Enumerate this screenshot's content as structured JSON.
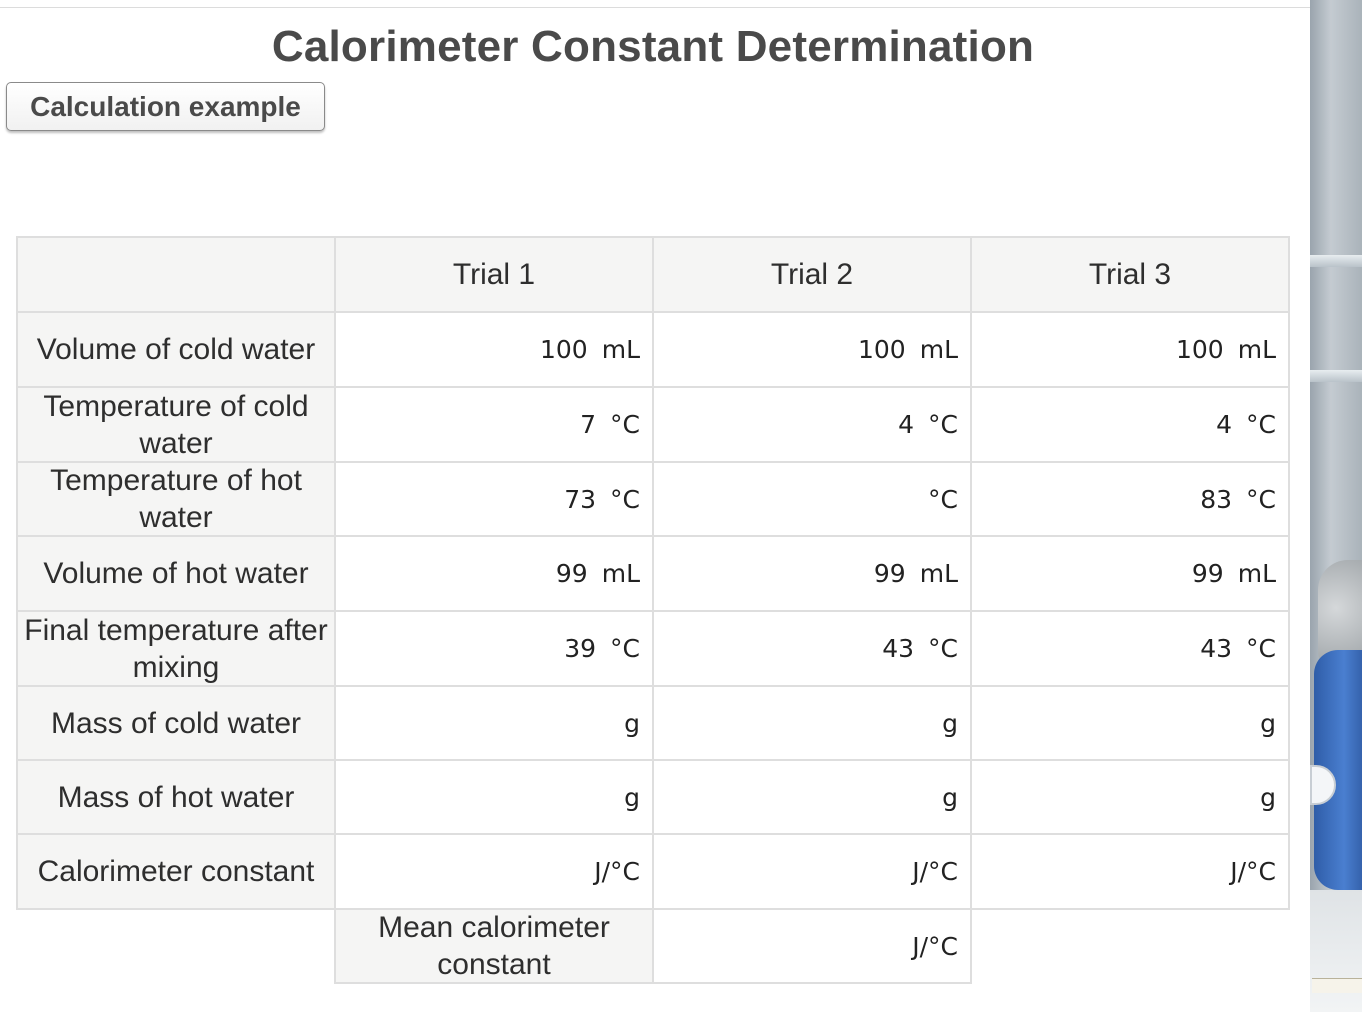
{
  "title": "Calorimeter Constant Determination",
  "calc_button_label": "Calculation example",
  "table": {
    "column_headers": [
      "Trial 1",
      "Trial 2",
      "Trial 3"
    ],
    "rows": [
      {
        "label": "Volume of cold water",
        "cells": [
          {
            "value": "100",
            "unit": "mL"
          },
          {
            "value": "100",
            "unit": "mL"
          },
          {
            "value": "100",
            "unit": "mL"
          }
        ]
      },
      {
        "label": "Temperature of cold water",
        "cells": [
          {
            "value": "7",
            "unit": "°C"
          },
          {
            "value": "4",
            "unit": "°C"
          },
          {
            "value": "4",
            "unit": "°C"
          }
        ]
      },
      {
        "label": "Temperature of hot water",
        "cells": [
          {
            "value": "73",
            "unit": "°C"
          },
          {
            "value": "",
            "unit": "°C"
          },
          {
            "value": "83",
            "unit": "°C"
          }
        ]
      },
      {
        "label": "Volume of hot water",
        "cells": [
          {
            "value": "99",
            "unit": "mL"
          },
          {
            "value": "99",
            "unit": "mL"
          },
          {
            "value": "99",
            "unit": "mL"
          }
        ]
      },
      {
        "label": "Final temperature after mixing",
        "cells": [
          {
            "value": "39",
            "unit": "°C"
          },
          {
            "value": "43",
            "unit": "°C"
          },
          {
            "value": "43",
            "unit": "°C"
          }
        ]
      },
      {
        "label": "Mass of cold water",
        "cells": [
          {
            "value": "",
            "unit": "g"
          },
          {
            "value": "",
            "unit": "g"
          },
          {
            "value": "",
            "unit": "g"
          }
        ]
      },
      {
        "label": "Mass of hot water",
        "cells": [
          {
            "value": "",
            "unit": "g"
          },
          {
            "value": "",
            "unit": "g"
          },
          {
            "value": "",
            "unit": "g"
          }
        ]
      },
      {
        "label": "Calorimeter constant",
        "cells": [
          {
            "value": "",
            "unit": "J/°C"
          },
          {
            "value": "",
            "unit": "J/°C"
          },
          {
            "value": "",
            "unit": "J/°C"
          }
        ]
      }
    ],
    "mean": {
      "label": "Mean calorimeter constant",
      "value": "",
      "unit": "J/°C"
    }
  }
}
